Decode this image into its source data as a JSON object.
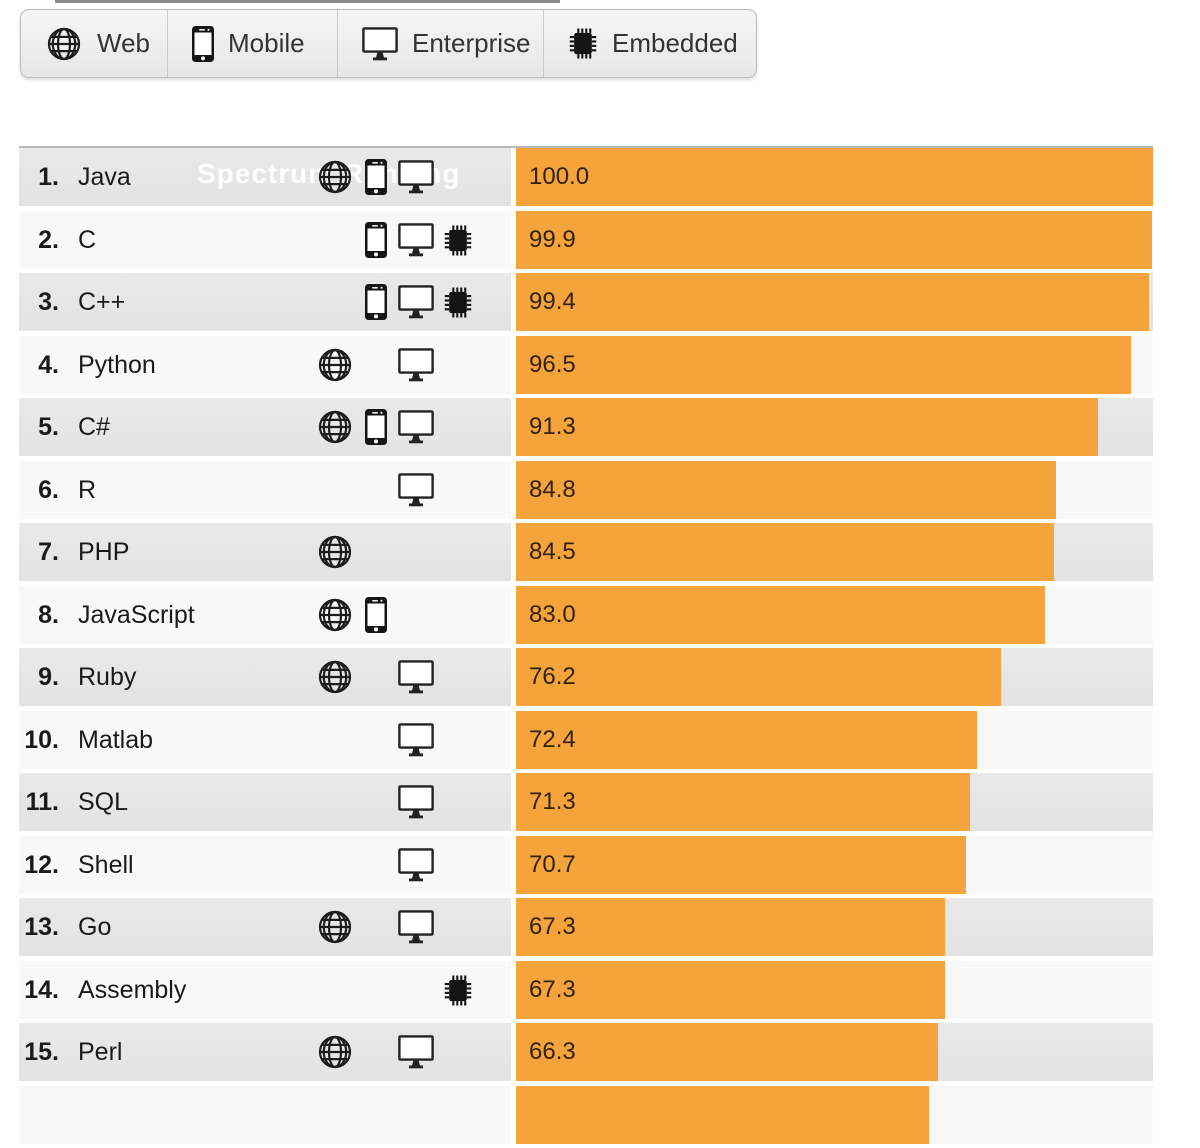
{
  "filter_bar": {
    "buttons": [
      {
        "label": "Web",
        "icon": "globe-icon"
      },
      {
        "label": "Mobile",
        "icon": "smartphone-icon"
      },
      {
        "label": "Enterprise",
        "icon": "monitor-icon"
      },
      {
        "label": "Embedded",
        "icon": "chip-icon"
      }
    ]
  },
  "watermark": "Spectrum Ranking",
  "colors": {
    "bar": "#F5A33B",
    "odd_row_bg": "#e6e6e6",
    "even_row_bg": "#f8f8f8",
    "score_text": "#33210a"
  },
  "rows": [
    {
      "rank": "1.",
      "name": "Java",
      "platforms": [
        "web",
        "mobile",
        "enterprise"
      ],
      "score": "100.0",
      "bar_percent": 100.0
    },
    {
      "rank": "2.",
      "name": "C",
      "platforms": [
        "mobile",
        "enterprise",
        "embedded"
      ],
      "score": "99.9",
      "bar_percent": 99.9
    },
    {
      "rank": "3.",
      "name": "C++",
      "platforms": [
        "mobile",
        "enterprise",
        "embedded"
      ],
      "score": "99.4",
      "bar_percent": 99.4
    },
    {
      "rank": "4.",
      "name": "Python",
      "platforms": [
        "web",
        "enterprise"
      ],
      "score": "96.5",
      "bar_percent": 96.5
    },
    {
      "rank": "5.",
      "name": "C#",
      "platforms": [
        "web",
        "mobile",
        "enterprise"
      ],
      "score": "91.3",
      "bar_percent": 91.3
    },
    {
      "rank": "6.",
      "name": "R",
      "platforms": [
        "enterprise"
      ],
      "score": "84.8",
      "bar_percent": 84.8
    },
    {
      "rank": "7.",
      "name": "PHP",
      "platforms": [
        "web"
      ],
      "score": "84.5",
      "bar_percent": 84.5
    },
    {
      "rank": "8.",
      "name": "JavaScript",
      "platforms": [
        "web",
        "mobile"
      ],
      "score": "83.0",
      "bar_percent": 83.0
    },
    {
      "rank": "9.",
      "name": "Ruby",
      "platforms": [
        "web",
        "enterprise"
      ],
      "score": "76.2",
      "bar_percent": 76.2
    },
    {
      "rank": "10.",
      "name": "Matlab",
      "platforms": [
        "enterprise"
      ],
      "score": "72.4",
      "bar_percent": 72.4
    },
    {
      "rank": "11.",
      "name": "SQL",
      "platforms": [
        "enterprise"
      ],
      "score": "71.3",
      "bar_percent": 71.3
    },
    {
      "rank": "12.",
      "name": "Shell",
      "platforms": [
        "enterprise"
      ],
      "score": "70.7",
      "bar_percent": 70.7
    },
    {
      "rank": "13.",
      "name": "Go",
      "platforms": [
        "web",
        "enterprise"
      ],
      "score": "67.3",
      "bar_percent": 67.3
    },
    {
      "rank": "14.",
      "name": "Assembly",
      "platforms": [
        "embedded"
      ],
      "score": "67.3",
      "bar_percent": 67.3
    },
    {
      "rank": "15.",
      "name": "Perl",
      "platforms": [
        "web",
        "enterprise"
      ],
      "score": "66.3",
      "bar_percent": 66.3
    }
  ],
  "partial_row": {
    "bar_percent": 64.8
  },
  "chart_data": {
    "type": "bar",
    "orientation": "horizontal",
    "title": "",
    "watermark": "Spectrum Ranking",
    "value_range": [
      0,
      100
    ],
    "bar_color": "#F5A33B",
    "categories": [
      "Java",
      "C",
      "C++",
      "Python",
      "C#",
      "R",
      "PHP",
      "JavaScript",
      "Ruby",
      "Matlab",
      "SQL",
      "Shell",
      "Go",
      "Assembly",
      "Perl"
    ],
    "values": [
      100.0,
      99.9,
      99.4,
      96.5,
      91.3,
      84.8,
      84.5,
      83.0,
      76.2,
      72.4,
      71.3,
      70.7,
      67.3,
      67.3,
      66.3
    ],
    "ranks": [
      1,
      2,
      3,
      4,
      5,
      6,
      7,
      8,
      9,
      10,
      11,
      12,
      13,
      14,
      15
    ],
    "platforms": [
      [
        "Web",
        "Mobile",
        "Enterprise"
      ],
      [
        "Mobile",
        "Enterprise",
        "Embedded"
      ],
      [
        "Mobile",
        "Enterprise",
        "Embedded"
      ],
      [
        "Web",
        "Enterprise"
      ],
      [
        "Web",
        "Mobile",
        "Enterprise"
      ],
      [
        "Enterprise"
      ],
      [
        "Web"
      ],
      [
        "Web",
        "Mobile"
      ],
      [
        "Web",
        "Enterprise"
      ],
      [
        "Enterprise"
      ],
      [
        "Enterprise"
      ],
      [
        "Enterprise"
      ],
      [
        "Web",
        "Enterprise"
      ],
      [
        "Embedded"
      ],
      [
        "Web",
        "Enterprise"
      ]
    ],
    "legend": [
      "Web",
      "Mobile",
      "Enterprise",
      "Embedded"
    ]
  }
}
